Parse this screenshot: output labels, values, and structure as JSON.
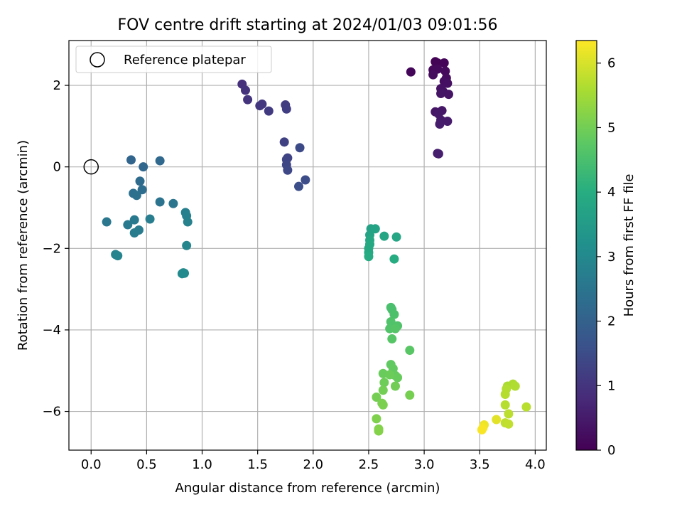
{
  "chart_data": {
    "type": "scatter",
    "title": "FOV centre drift starting at 2024/01/03 09:01:56",
    "xlabel": "Angular distance from reference (arcmin)",
    "ylabel": "Rotation from reference (arcmin)",
    "xlim": [
      -0.2,
      4.1
    ],
    "ylim": [
      -6.95,
      3.1
    ],
    "xticks": [
      0.0,
      0.5,
      1.0,
      1.5,
      2.0,
      2.5,
      3.0,
      3.5,
      4.0
    ],
    "xtick_labels": [
      "0.0",
      "0.5",
      "1.0",
      "1.5",
      "2.0",
      "2.5",
      "3.0",
      "3.5",
      "4.0"
    ],
    "yticks": [
      2,
      0,
      -2,
      -4,
      -6
    ],
    "ytick_labels": [
      "2",
      "0",
      "−2",
      "−4",
      "−6"
    ],
    "grid": true,
    "legend": {
      "position": "top-left",
      "entries": [
        "Reference platepar"
      ]
    },
    "reference_point": {
      "x": 0.0,
      "y": 0.0
    },
    "colorbar": {
      "label": "Hours from first FF file",
      "colormap": "viridis",
      "range": [
        0,
        6.35
      ],
      "ticks": [
        0,
        1,
        2,
        3,
        4,
        5,
        6
      ],
      "tick_labels": [
        "0",
        "1",
        "2",
        "3",
        "4",
        "5",
        "6"
      ]
    },
    "points": [
      {
        "x": 3.1,
        "y": 2.58,
        "c": 0.02
      },
      {
        "x": 3.12,
        "y": 2.55,
        "c": 0.05
      },
      {
        "x": 3.18,
        "y": 2.55,
        "c": 0.08
      },
      {
        "x": 2.88,
        "y": 2.33,
        "c": 0.1
      },
      {
        "x": 3.08,
        "y": 2.38,
        "c": 0.12
      },
      {
        "x": 3.12,
        "y": 2.4,
        "c": 0.15
      },
      {
        "x": 3.19,
        "y": 2.35,
        "c": 0.18
      },
      {
        "x": 3.08,
        "y": 2.26,
        "c": 0.2
      },
      {
        "x": 3.2,
        "y": 2.18,
        "c": 0.22
      },
      {
        "x": 3.18,
        "y": 2.1,
        "c": 0.25
      },
      {
        "x": 3.21,
        "y": 2.05,
        "c": 0.28
      },
      {
        "x": 3.15,
        "y": 1.92,
        "c": 0.3
      },
      {
        "x": 3.17,
        "y": 1.85,
        "c": 0.33
      },
      {
        "x": 3.22,
        "y": 1.78,
        "c": 0.36
      },
      {
        "x": 3.15,
        "y": 1.8,
        "c": 0.38
      },
      {
        "x": 3.1,
        "y": 1.35,
        "c": 0.4
      },
      {
        "x": 3.16,
        "y": 1.38,
        "c": 0.42
      },
      {
        "x": 3.13,
        "y": 1.3,
        "c": 0.45
      },
      {
        "x": 3.15,
        "y": 1.15,
        "c": 0.48
      },
      {
        "x": 3.21,
        "y": 1.12,
        "c": 0.5
      },
      {
        "x": 3.14,
        "y": 1.05,
        "c": 0.52
      },
      {
        "x": 3.12,
        "y": 0.33,
        "c": 0.55
      },
      {
        "x": 3.13,
        "y": 0.32,
        "c": 0.58
      },
      {
        "x": 1.36,
        "y": 2.03,
        "c": 0.9
      },
      {
        "x": 1.39,
        "y": 1.88,
        "c": 0.95
      },
      {
        "x": 1.41,
        "y": 1.65,
        "c": 1.0
      },
      {
        "x": 1.52,
        "y": 1.5,
        "c": 1.05
      },
      {
        "x": 1.54,
        "y": 1.54,
        "c": 1.08
      },
      {
        "x": 1.6,
        "y": 1.37,
        "c": 1.12
      },
      {
        "x": 1.75,
        "y": 1.52,
        "c": 1.15
      },
      {
        "x": 1.76,
        "y": 1.42,
        "c": 1.18
      },
      {
        "x": 1.74,
        "y": 0.61,
        "c": 1.25
      },
      {
        "x": 1.77,
        "y": 0.22,
        "c": 1.3
      },
      {
        "x": 1.76,
        "y": 0.18,
        "c": 1.33
      },
      {
        "x": 1.76,
        "y": 0.05,
        "c": 1.36
      },
      {
        "x": 1.77,
        "y": -0.08,
        "c": 1.4
      },
      {
        "x": 1.88,
        "y": 0.47,
        "c": 1.45
      },
      {
        "x": 1.93,
        "y": -0.32,
        "c": 1.5
      },
      {
        "x": 1.87,
        "y": -0.48,
        "c": 1.55
      },
      {
        "x": 0.36,
        "y": 0.17,
        "c": 2.1
      },
      {
        "x": 0.47,
        "y": 0.0,
        "c": 2.15
      },
      {
        "x": 0.62,
        "y": 0.15,
        "c": 2.2
      },
      {
        "x": 0.44,
        "y": -0.35,
        "c": 2.25
      },
      {
        "x": 0.46,
        "y": -0.56,
        "c": 2.3
      },
      {
        "x": 0.38,
        "y": -0.65,
        "c": 2.35
      },
      {
        "x": 0.41,
        "y": -0.7,
        "c": 2.38
      },
      {
        "x": 0.62,
        "y": -0.86,
        "c": 2.45
      },
      {
        "x": 0.74,
        "y": -0.9,
        "c": 2.5
      },
      {
        "x": 0.14,
        "y": -1.35,
        "c": 2.55
      },
      {
        "x": 0.33,
        "y": -1.42,
        "c": 2.6
      },
      {
        "x": 0.39,
        "y": -1.3,
        "c": 2.62
      },
      {
        "x": 0.43,
        "y": -1.55,
        "c": 2.65
      },
      {
        "x": 0.39,
        "y": -1.62,
        "c": 2.68
      },
      {
        "x": 0.53,
        "y": -1.28,
        "c": 2.7
      },
      {
        "x": 0.85,
        "y": -1.12,
        "c": 2.75
      },
      {
        "x": 0.86,
        "y": -1.2,
        "c": 2.78
      },
      {
        "x": 0.87,
        "y": -1.35,
        "c": 2.8
      },
      {
        "x": 0.22,
        "y": -2.15,
        "c": 2.85
      },
      {
        "x": 0.24,
        "y": -2.18,
        "c": 2.88
      },
      {
        "x": 0.86,
        "y": -1.93,
        "c": 2.92
      },
      {
        "x": 0.83,
        "y": -2.6,
        "c": 3.0
      },
      {
        "x": 0.82,
        "y": -2.62,
        "c": 3.02
      },
      {
        "x": 0.84,
        "y": -2.61,
        "c": 3.04
      },
      {
        "x": 2.52,
        "y": -1.52,
        "c": 3.7
      },
      {
        "x": 2.56,
        "y": -1.52,
        "c": 3.72
      },
      {
        "x": 2.51,
        "y": -1.67,
        "c": 3.75
      },
      {
        "x": 2.64,
        "y": -1.7,
        "c": 3.78
      },
      {
        "x": 2.75,
        "y": -1.72,
        "c": 3.8
      },
      {
        "x": 2.51,
        "y": -1.8,
        "c": 3.82
      },
      {
        "x": 2.51,
        "y": -1.9,
        "c": 3.85
      },
      {
        "x": 2.5,
        "y": -2.0,
        "c": 3.88
      },
      {
        "x": 2.5,
        "y": -2.1,
        "c": 3.9
      },
      {
        "x": 2.5,
        "y": -2.2,
        "c": 3.93
      },
      {
        "x": 2.73,
        "y": -2.26,
        "c": 3.96
      },
      {
        "x": 2.7,
        "y": -3.45,
        "c": 4.5
      },
      {
        "x": 2.71,
        "y": -3.5,
        "c": 4.52
      },
      {
        "x": 2.73,
        "y": -3.62,
        "c": 4.55
      },
      {
        "x": 2.7,
        "y": -3.8,
        "c": 4.58
      },
      {
        "x": 2.76,
        "y": -3.9,
        "c": 4.6
      },
      {
        "x": 2.69,
        "y": -3.97,
        "c": 4.62
      },
      {
        "x": 2.74,
        "y": -3.97,
        "c": 4.65
      },
      {
        "x": 2.71,
        "y": -4.22,
        "c": 4.68
      },
      {
        "x": 2.87,
        "y": -4.5,
        "c": 4.72
      },
      {
        "x": 2.7,
        "y": -4.85,
        "c": 4.8
      },
      {
        "x": 2.72,
        "y": -4.95,
        "c": 4.82
      },
      {
        "x": 2.74,
        "y": -5.12,
        "c": 4.85
      },
      {
        "x": 2.76,
        "y": -5.17,
        "c": 4.88
      },
      {
        "x": 2.63,
        "y": -5.07,
        "c": 4.9
      },
      {
        "x": 2.69,
        "y": -5.1,
        "c": 4.92
      },
      {
        "x": 2.64,
        "y": -5.29,
        "c": 4.95
      },
      {
        "x": 2.74,
        "y": -5.38,
        "c": 4.98
      },
      {
        "x": 2.63,
        "y": -5.48,
        "c": 5.0
      },
      {
        "x": 2.57,
        "y": -5.65,
        "c": 5.03
      },
      {
        "x": 2.87,
        "y": -5.6,
        "c": 5.05
      },
      {
        "x": 2.62,
        "y": -5.8,
        "c": 5.08
      },
      {
        "x": 2.63,
        "y": -5.84,
        "c": 5.1
      },
      {
        "x": 2.57,
        "y": -6.18,
        "c": 5.13
      },
      {
        "x": 2.59,
        "y": -6.43,
        "c": 5.16
      },
      {
        "x": 2.59,
        "y": -6.48,
        "c": 5.18
      },
      {
        "x": 3.75,
        "y": -5.38,
        "c": 5.6
      },
      {
        "x": 3.8,
        "y": -5.33,
        "c": 5.62
      },
      {
        "x": 3.82,
        "y": -5.38,
        "c": 5.64
      },
      {
        "x": 3.74,
        "y": -5.45,
        "c": 5.66
      },
      {
        "x": 3.73,
        "y": -5.58,
        "c": 5.68
      },
      {
        "x": 3.73,
        "y": -5.84,
        "c": 5.7
      },
      {
        "x": 3.92,
        "y": -5.89,
        "c": 5.72
      },
      {
        "x": 3.76,
        "y": -6.06,
        "c": 5.75
      },
      {
        "x": 3.73,
        "y": -6.28,
        "c": 5.78
      },
      {
        "x": 3.76,
        "y": -6.31,
        "c": 5.8
      },
      {
        "x": 3.65,
        "y": -6.2,
        "c": 6.1
      },
      {
        "x": 3.54,
        "y": -6.33,
        "c": 6.2
      },
      {
        "x": 3.53,
        "y": -6.4,
        "c": 6.25
      },
      {
        "x": 3.52,
        "y": -6.45,
        "c": 6.3
      }
    ]
  }
}
